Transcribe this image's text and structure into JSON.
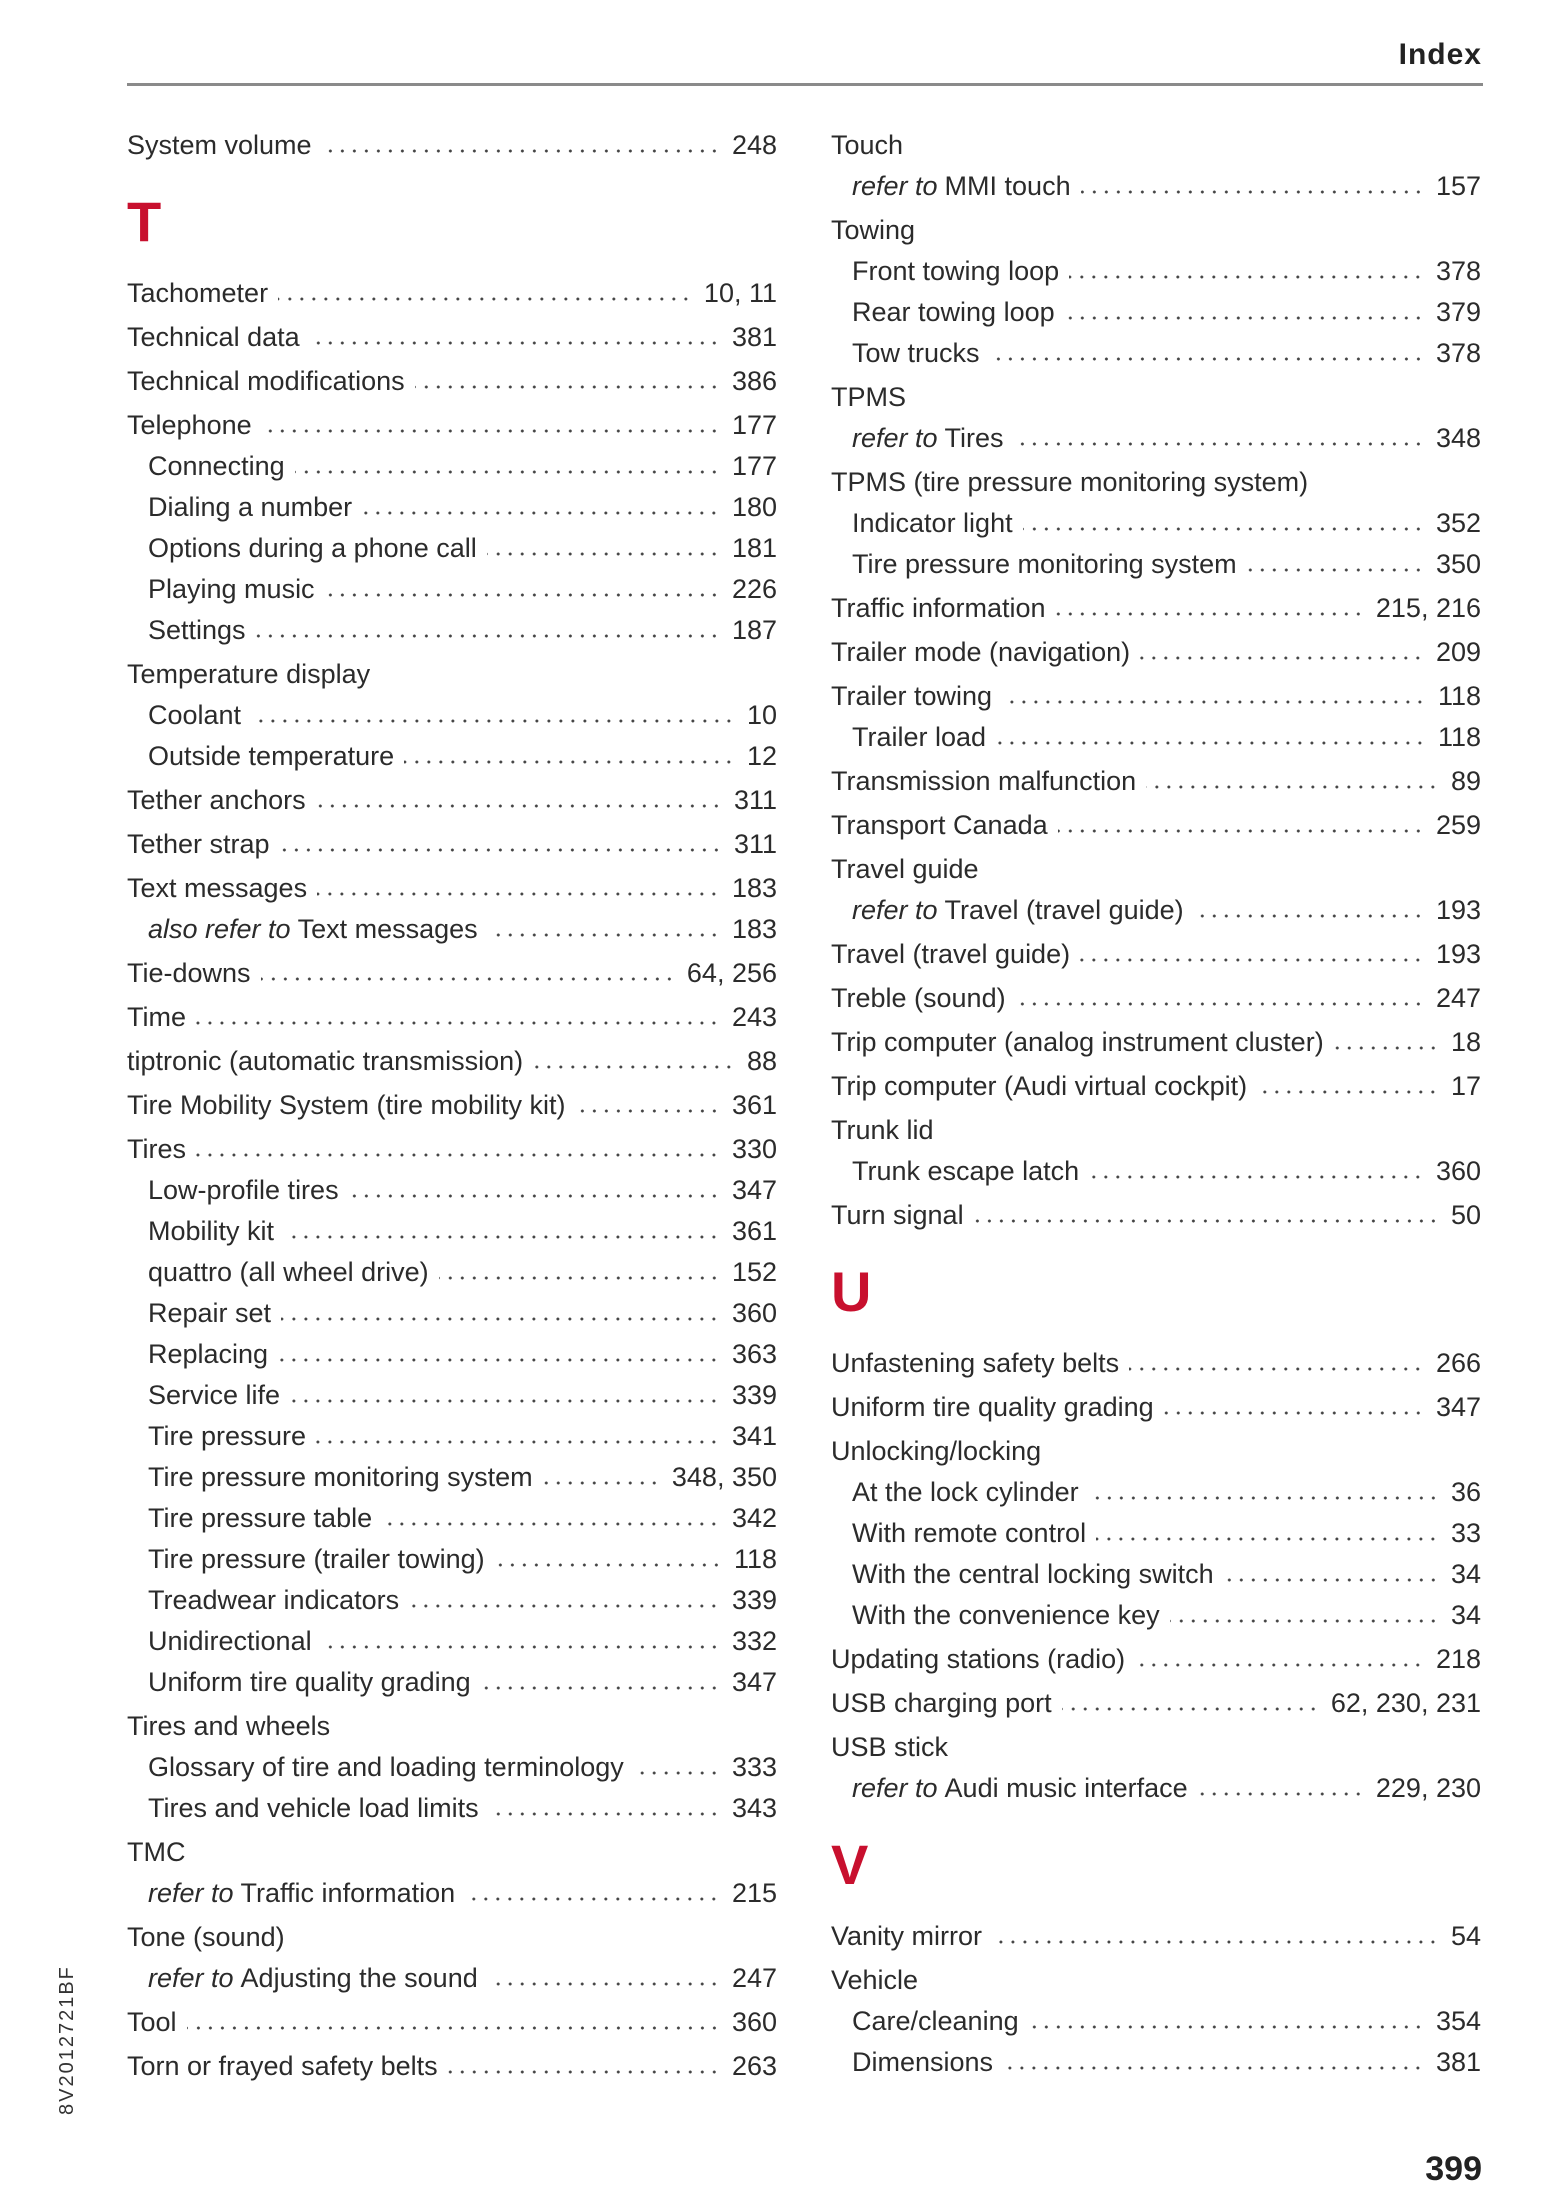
{
  "header": {
    "title": "Index"
  },
  "footer": {
    "page_number": "399",
    "doc_code": "8V2012721BF"
  },
  "accent_color": "#c8102e",
  "columns": [
    {
      "entries": [
        {
          "type": "entry",
          "level": 0,
          "text": "System volume",
          "page": "248"
        },
        {
          "type": "letter",
          "text": "T"
        },
        {
          "type": "entry",
          "level": 0,
          "text": "Tachometer",
          "page": "10, 11"
        },
        {
          "type": "entry",
          "level": 0,
          "text": "Technical data",
          "page": "381"
        },
        {
          "type": "entry",
          "level": 0,
          "text": "Technical modifications",
          "page": "386"
        },
        {
          "type": "entry",
          "level": 0,
          "text": "Telephone",
          "page": "177"
        },
        {
          "type": "entry",
          "level": 1,
          "text": "Connecting",
          "page": "177"
        },
        {
          "type": "entry",
          "level": 1,
          "text": "Dialing a number",
          "page": "180"
        },
        {
          "type": "entry",
          "level": 1,
          "text": "Options during a phone call",
          "page": "181"
        },
        {
          "type": "entry",
          "level": 1,
          "text": "Playing music",
          "page": "226"
        },
        {
          "type": "entry",
          "level": 1,
          "text": "Settings",
          "page": "187"
        },
        {
          "type": "entry",
          "level": 0,
          "text": "Temperature display"
        },
        {
          "type": "entry",
          "level": 1,
          "text": "Coolant",
          "page": "10"
        },
        {
          "type": "entry",
          "level": 1,
          "text": "Outside temperature",
          "page": "12"
        },
        {
          "type": "entry",
          "level": 0,
          "text": "Tether anchors",
          "page": "311"
        },
        {
          "type": "entry",
          "level": 0,
          "text": "Tether strap",
          "page": "311"
        },
        {
          "type": "entry",
          "level": 0,
          "text": "Text messages",
          "page": "183"
        },
        {
          "type": "entry",
          "level": 1,
          "prefix": "also refer to",
          "text": "Text messages",
          "page": "183"
        },
        {
          "type": "entry",
          "level": 0,
          "text": "Tie-downs",
          "page": "64, 256"
        },
        {
          "type": "entry",
          "level": 0,
          "text": "Time",
          "page": "243"
        },
        {
          "type": "entry",
          "level": 0,
          "text": "tiptronic (automatic transmission)",
          "page": "88"
        },
        {
          "type": "entry",
          "level": 0,
          "text": "Tire Mobility System (tire mobility kit)",
          "page": "361"
        },
        {
          "type": "entry",
          "level": 0,
          "text": "Tires",
          "page": "330"
        },
        {
          "type": "entry",
          "level": 1,
          "text": "Low-profile tires",
          "page": "347"
        },
        {
          "type": "entry",
          "level": 1,
          "text": "Mobility kit",
          "page": "361"
        },
        {
          "type": "entry",
          "level": 1,
          "text": "quattro (all wheel drive)",
          "page": "152"
        },
        {
          "type": "entry",
          "level": 1,
          "text": "Repair set",
          "page": "360"
        },
        {
          "type": "entry",
          "level": 1,
          "text": "Replacing",
          "page": "363"
        },
        {
          "type": "entry",
          "level": 1,
          "text": "Service life",
          "page": "339"
        },
        {
          "type": "entry",
          "level": 1,
          "text": "Tire pressure",
          "page": "341"
        },
        {
          "type": "entry",
          "level": 1,
          "text": "Tire pressure monitoring system",
          "page": "348, 350"
        },
        {
          "type": "entry",
          "level": 1,
          "text": "Tire pressure table",
          "page": "342"
        },
        {
          "type": "entry",
          "level": 1,
          "text": "Tire pressure (trailer towing)",
          "page": "118"
        },
        {
          "type": "entry",
          "level": 1,
          "text": "Treadwear indicators",
          "page": "339"
        },
        {
          "type": "entry",
          "level": 1,
          "text": "Unidirectional",
          "page": "332"
        },
        {
          "type": "entry",
          "level": 1,
          "text": "Uniform tire quality grading",
          "page": "347"
        },
        {
          "type": "entry",
          "level": 0,
          "text": "Tires and wheels"
        },
        {
          "type": "entry",
          "level": 1,
          "text": "Glossary of tire and loading terminology",
          "page": "333"
        },
        {
          "type": "entry",
          "level": 1,
          "text": "Tires and vehicle load limits",
          "page": "343"
        },
        {
          "type": "entry",
          "level": 0,
          "text": "TMC"
        },
        {
          "type": "entry",
          "level": 1,
          "prefix": "refer to",
          "text": "Traffic information",
          "page": "215"
        },
        {
          "type": "entry",
          "level": 0,
          "text": "Tone (sound)"
        },
        {
          "type": "entry",
          "level": 1,
          "prefix": "refer to",
          "text": "Adjusting the sound",
          "page": "247"
        },
        {
          "type": "entry",
          "level": 0,
          "text": "Tool",
          "page": "360"
        },
        {
          "type": "entry",
          "level": 0,
          "text": "Torn or frayed safety belts",
          "page": "263"
        }
      ]
    },
    {
      "entries": [
        {
          "type": "entry",
          "level": 0,
          "text": "Touch"
        },
        {
          "type": "entry",
          "level": 1,
          "prefix": "refer to",
          "text": "MMI touch",
          "page": "157"
        },
        {
          "type": "entry",
          "level": 0,
          "text": "Towing"
        },
        {
          "type": "entry",
          "level": 1,
          "text": "Front towing loop",
          "page": "378"
        },
        {
          "type": "entry",
          "level": 1,
          "text": "Rear towing loop",
          "page": "379"
        },
        {
          "type": "entry",
          "level": 1,
          "text": "Tow trucks",
          "page": "378"
        },
        {
          "type": "entry",
          "level": 0,
          "text": "TPMS"
        },
        {
          "type": "entry",
          "level": 1,
          "prefix": "refer to",
          "text": "Tires",
          "page": "348"
        },
        {
          "type": "entry",
          "level": 0,
          "text": "TPMS (tire pressure monitoring system)"
        },
        {
          "type": "entry",
          "level": 1,
          "text": "Indicator light",
          "page": "352"
        },
        {
          "type": "entry",
          "level": 1,
          "text": "Tire pressure monitoring system",
          "page": "350"
        },
        {
          "type": "entry",
          "level": 0,
          "text": "Traffic information",
          "page": "215, 216"
        },
        {
          "type": "entry",
          "level": 0,
          "text": "Trailer mode (navigation)",
          "page": "209"
        },
        {
          "type": "entry",
          "level": 0,
          "text": "Trailer towing",
          "page": "118"
        },
        {
          "type": "entry",
          "level": 1,
          "text": "Trailer load",
          "page": "118"
        },
        {
          "type": "entry",
          "level": 0,
          "text": "Transmission malfunction",
          "page": "89"
        },
        {
          "type": "entry",
          "level": 0,
          "text": "Transport Canada",
          "page": "259"
        },
        {
          "type": "entry",
          "level": 0,
          "text": "Travel guide"
        },
        {
          "type": "entry",
          "level": 1,
          "prefix": "refer to",
          "text": "Travel (travel guide)",
          "page": "193"
        },
        {
          "type": "entry",
          "level": 0,
          "text": "Travel (travel guide)",
          "page": "193"
        },
        {
          "type": "entry",
          "level": 0,
          "text": "Treble (sound)",
          "page": "247"
        },
        {
          "type": "entry",
          "level": 0,
          "text": "Trip computer (analog instrument cluster)",
          "page": "18"
        },
        {
          "type": "entry",
          "level": 0,
          "text": "Trip computer (Audi virtual cockpit)",
          "page": "17"
        },
        {
          "type": "entry",
          "level": 0,
          "text": "Trunk lid"
        },
        {
          "type": "entry",
          "level": 1,
          "text": "Trunk escape latch",
          "page": "360"
        },
        {
          "type": "entry",
          "level": 0,
          "text": "Turn signal",
          "page": "50"
        },
        {
          "type": "letter",
          "text": "U"
        },
        {
          "type": "entry",
          "level": 0,
          "text": "Unfastening safety belts",
          "page": "266"
        },
        {
          "type": "entry",
          "level": 0,
          "text": "Uniform tire quality grading",
          "page": "347"
        },
        {
          "type": "entry",
          "level": 0,
          "text": "Unlocking/locking"
        },
        {
          "type": "entry",
          "level": 1,
          "text": "At the lock cylinder",
          "page": "36"
        },
        {
          "type": "entry",
          "level": 1,
          "text": "With remote control",
          "page": "33"
        },
        {
          "type": "entry",
          "level": 1,
          "text": "With the central locking switch",
          "page": "34"
        },
        {
          "type": "entry",
          "level": 1,
          "text": "With the convenience key",
          "page": "34"
        },
        {
          "type": "entry",
          "level": 0,
          "text": "Updating stations (radio)",
          "page": "218"
        },
        {
          "type": "entry",
          "level": 0,
          "text": "USB charging port",
          "page": "62, 230, 231"
        },
        {
          "type": "entry",
          "level": 0,
          "text": "USB stick"
        },
        {
          "type": "entry",
          "level": 1,
          "prefix": "refer to",
          "text": "Audi music interface",
          "page": "229, 230"
        },
        {
          "type": "letter",
          "text": "V"
        },
        {
          "type": "entry",
          "level": 0,
          "text": "Vanity mirror",
          "page": "54"
        },
        {
          "type": "entry",
          "level": 0,
          "text": "Vehicle"
        },
        {
          "type": "entry",
          "level": 1,
          "text": "Care/cleaning",
          "page": "354"
        },
        {
          "type": "entry",
          "level": 1,
          "text": "Dimensions",
          "page": "381"
        }
      ]
    }
  ]
}
